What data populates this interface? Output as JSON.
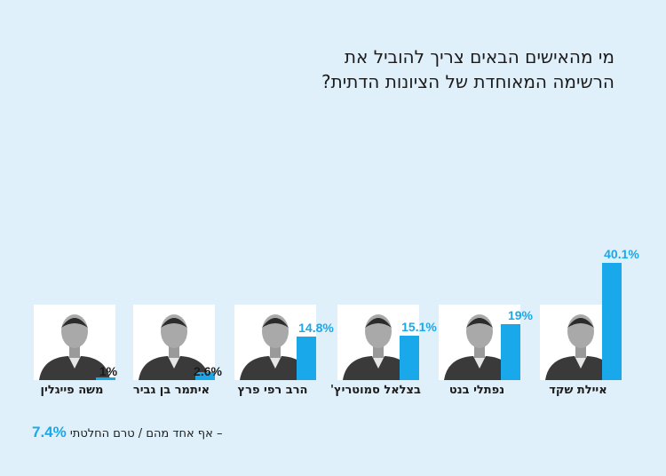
{
  "title_lines": [
    "מי מהאישים הבאים צריך להוביל את",
    "הרשימה המאוחדת של הציונות הדתית?"
  ],
  "chart_data": {
    "type": "bar",
    "title": "מי מהאישים הבאים צריך להוביל את הרשימה המאוחדת של הציונות הדתית?",
    "categories": [
      "איילת שקד",
      "נפתלי בנט",
      "בצלאל סמוטריץ'",
      "הרב רפי פרץ",
      "איתמר בן גביר",
      "משה פייגלין"
    ],
    "values": [
      40.1,
      19,
      15.1,
      14.8,
      2.6,
      1
    ],
    "value_labels": [
      "40.1%",
      "19%",
      "15.1%",
      "14.8%",
      "2.6%",
      "1%"
    ],
    "ylim": [
      0,
      45
    ],
    "grid": false,
    "legend": "none",
    "bar_color": "#19a9ea"
  },
  "footnote": {
    "text": "אף אחד מהם / טרם החלטתי –",
    "value": "7.4%"
  },
  "colors": {
    "background": "#dff0fb",
    "accent": "#19a9ea"
  }
}
